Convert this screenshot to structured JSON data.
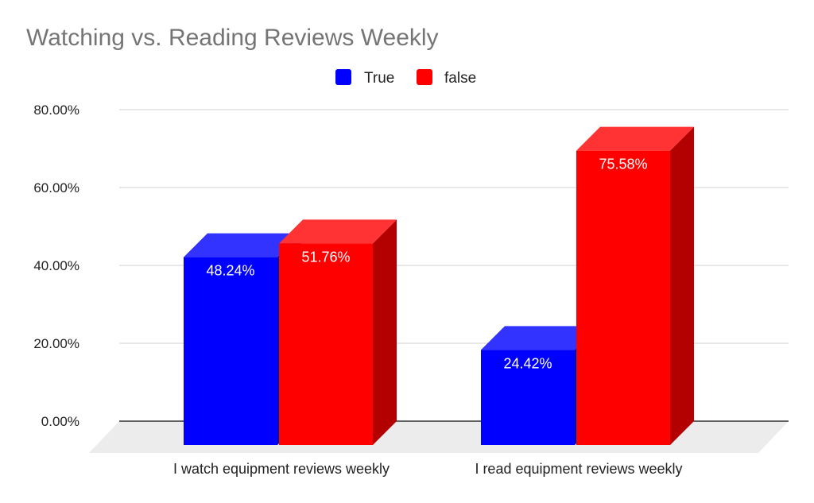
{
  "chart_data": {
    "type": "bar",
    "title": "Watching vs. Reading Reviews Weekly",
    "categories": [
      "I watch equipment reviews weekly",
      "I read equipment reviews weekly"
    ],
    "series": [
      {
        "name": "True",
        "values": [
          48.24,
          24.42
        ],
        "labels": [
          "48.24%",
          "24.42%"
        ],
        "color": "#0000ff",
        "top_color": "#3333ff",
        "side_color": "#0000b3"
      },
      {
        "name": "false",
        "values": [
          51.76,
          75.58
        ],
        "labels": [
          "51.76%",
          "75.58%"
        ],
        "color": "#ff0000",
        "top_color": "#ff3333",
        "side_color": "#b30000"
      }
    ],
    "yticks": [
      0,
      20,
      40,
      60,
      80
    ],
    "ytick_labels": [
      "0.00%",
      "20.00%",
      "40.00%",
      "60.00%",
      "80.00%"
    ],
    "ylim": [
      0,
      80
    ],
    "xlabel": "",
    "ylabel": "",
    "grid": true,
    "legend_position": "top",
    "style": "3d"
  }
}
